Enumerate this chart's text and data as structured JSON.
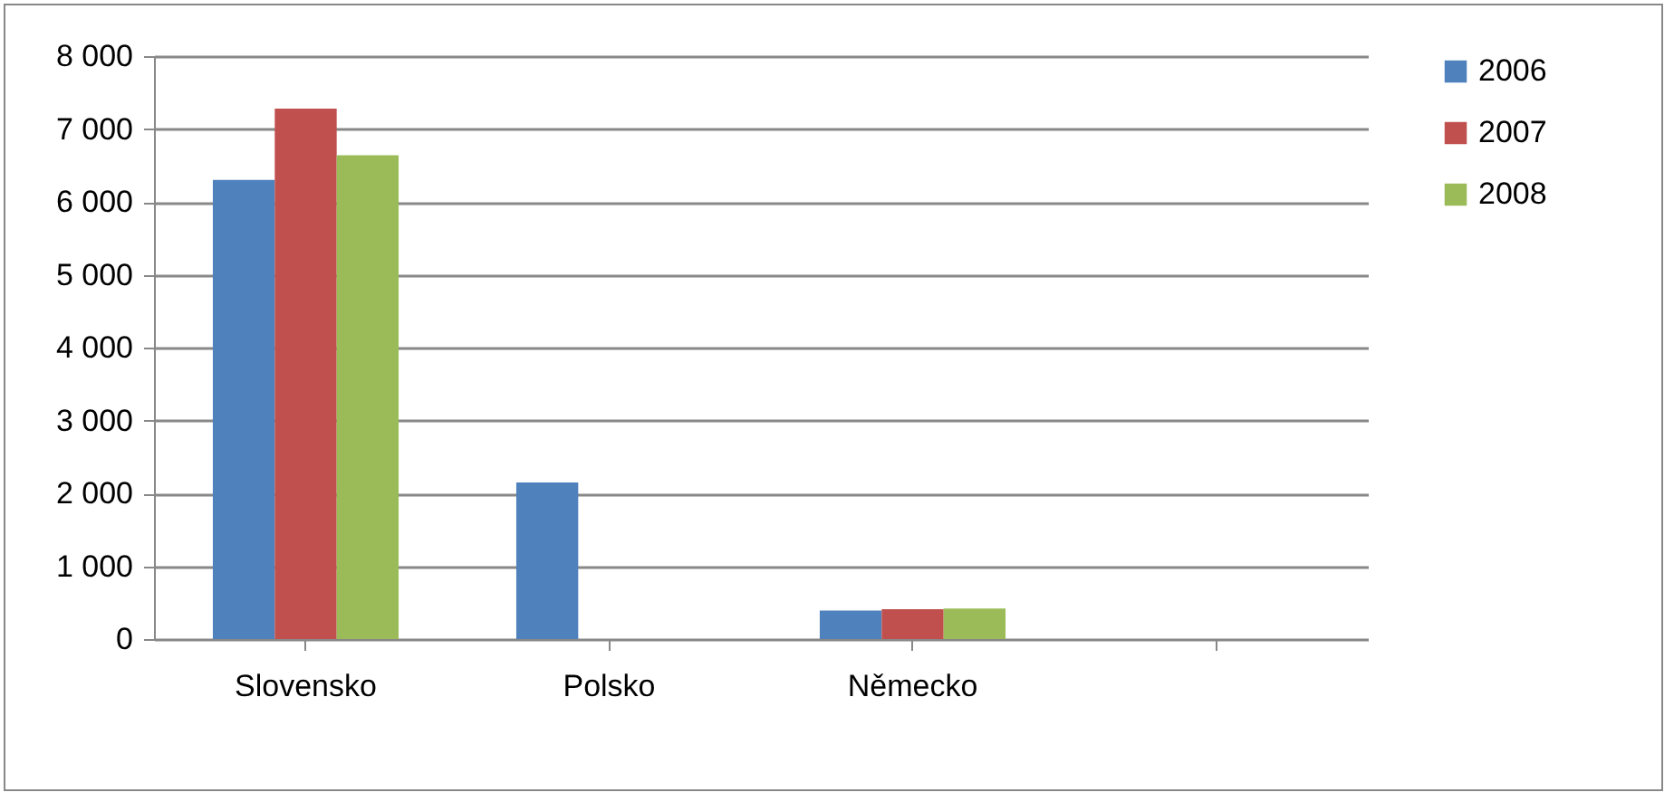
{
  "chart_data": {
    "type": "bar",
    "categories": [
      "Slovensko",
      "Polsko",
      "Německo",
      null
    ],
    "series": [
      {
        "name": "2006",
        "color": "#4f81bd",
        "values": [
          6300,
          2150,
          390,
          null
        ]
      },
      {
        "name": "2007",
        "color": "#c0504d",
        "values": [
          7280,
          null,
          410,
          null
        ]
      },
      {
        "name": "2008",
        "color": "#9bbb59",
        "values": [
          6640,
          null,
          420,
          null
        ]
      }
    ],
    "ylim": [
      0,
      8000
    ],
    "yticks": [
      {
        "value": 0,
        "label": "0"
      },
      {
        "value": 1000,
        "label": "1 000"
      },
      {
        "value": 2000,
        "label": "2 000"
      },
      {
        "value": 3000,
        "label": "3 000"
      },
      {
        "value": 4000,
        "label": "4 000"
      },
      {
        "value": 5000,
        "label": "5 000"
      },
      {
        "value": 6000,
        "label": "6 000"
      },
      {
        "value": 7000,
        "label": "7 000"
      },
      {
        "value": 8000,
        "label": "8 000"
      }
    ],
    "grid": "y",
    "legend": "right"
  }
}
